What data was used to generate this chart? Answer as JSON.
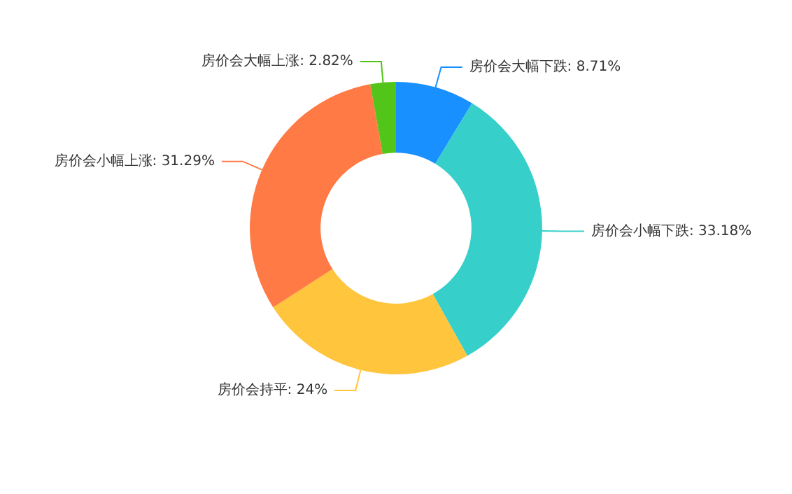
{
  "chart_data": {
    "type": "donut",
    "categories": [
      "房价会大幅下跌",
      "房价会小幅下跌",
      "房价会持平",
      "房价会小幅上涨",
      "房价会大幅上涨"
    ],
    "values": [
      8.71,
      33.18,
      24,
      31.29,
      2.82
    ],
    "value_labels": [
      "8.71%",
      "33.18%",
      "24%",
      "31.29%",
      "2.82%"
    ],
    "colors": [
      "#1890ff",
      "#36cfc9",
      "#ffc53d",
      "#ff7a45",
      "#52c41a"
    ],
    "legend": false
  }
}
